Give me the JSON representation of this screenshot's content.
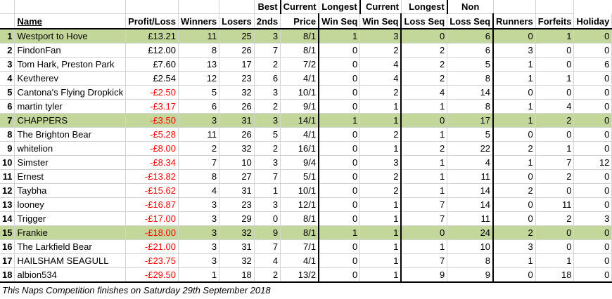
{
  "headers_top": {
    "best": "Best",
    "current_win": "Current",
    "longest_win": "Longest",
    "current_loss": "Current",
    "longest_loss": "Longest",
    "non": "Non"
  },
  "headers": {
    "name": "Name",
    "profit": "Profit/Loss",
    "winners": "Winners",
    "losers": "Losers",
    "seconds": "2nds",
    "price": "Price",
    "cur_win": "Win Seq",
    "long_win": "Win Seq",
    "cur_loss": "Loss Seq",
    "long_loss": "Loss Seq",
    "runners": "Runners",
    "forfeits": "Forfeits",
    "holiday": "Holiday"
  },
  "rows": [
    {
      "rank": "1",
      "name": "Westport to Hove",
      "profit": "£13.21",
      "winners": "11",
      "losers": "25",
      "seconds": "3",
      "price": "8/1",
      "cur_win": "1",
      "long_win": "3",
      "cur_loss": "0",
      "long_loss": "6",
      "non_runners": "0",
      "forfeits": "1",
      "holiday": "0",
      "highlight": true,
      "negative": false
    },
    {
      "rank": "2",
      "name": "FindonFan",
      "profit": "£12.00",
      "winners": "8",
      "losers": "26",
      "seconds": "7",
      "price": "8/1",
      "cur_win": "0",
      "long_win": "2",
      "cur_loss": "2",
      "long_loss": "6",
      "non_runners": "3",
      "forfeits": "0",
      "holiday": "0",
      "highlight": false,
      "negative": false
    },
    {
      "rank": "3",
      "name": "Tom Hark, Preston Park",
      "profit": "£7.60",
      "winners": "13",
      "losers": "17",
      "seconds": "2",
      "price": "7/2",
      "cur_win": "0",
      "long_win": "4",
      "cur_loss": "2",
      "long_loss": "5",
      "non_runners": "1",
      "forfeits": "0",
      "holiday": "6",
      "highlight": false,
      "negative": false
    },
    {
      "rank": "4",
      "name": "Kevtherev",
      "profit": "£2.54",
      "winners": "12",
      "losers": "23",
      "seconds": "6",
      "price": "4/1",
      "cur_win": "0",
      "long_win": "4",
      "cur_loss": "2",
      "long_loss": "8",
      "non_runners": "1",
      "forfeits": "1",
      "holiday": "0",
      "highlight": false,
      "negative": false
    },
    {
      "rank": "5",
      "name": "Cantona's Flying Dropkick",
      "profit": "-£2.50",
      "winners": "5",
      "losers": "32",
      "seconds": "3",
      "price": "10/1",
      "cur_win": "0",
      "long_win": "2",
      "cur_loss": "4",
      "long_loss": "14",
      "non_runners": "0",
      "forfeits": "0",
      "holiday": "0",
      "highlight": false,
      "negative": true
    },
    {
      "rank": "6",
      "name": "martin tyler",
      "profit": "-£3.17",
      "winners": "6",
      "losers": "26",
      "seconds": "2",
      "price": "9/1",
      "cur_win": "0",
      "long_win": "1",
      "cur_loss": "1",
      "long_loss": "8",
      "non_runners": "1",
      "forfeits": "4",
      "holiday": "0",
      "highlight": false,
      "negative": true
    },
    {
      "rank": "7",
      "name": "CHAPPERS",
      "profit": "-£3.50",
      "winners": "3",
      "losers": "31",
      "seconds": "3",
      "price": "14/1",
      "cur_win": "1",
      "long_win": "1",
      "cur_loss": "0",
      "long_loss": "17",
      "non_runners": "1",
      "forfeits": "2",
      "holiday": "0",
      "highlight": true,
      "negative": true
    },
    {
      "rank": "8",
      "name": "The Brighton Bear",
      "profit": "-£5.28",
      "winners": "11",
      "losers": "26",
      "seconds": "5",
      "price": "4/1",
      "cur_win": "0",
      "long_win": "2",
      "cur_loss": "1",
      "long_loss": "5",
      "non_runners": "0",
      "forfeits": "0",
      "holiday": "0",
      "highlight": false,
      "negative": true
    },
    {
      "rank": "9",
      "name": "whitelion",
      "profit": "-£8.00",
      "winners": "2",
      "losers": "32",
      "seconds": "2",
      "price": "16/1",
      "cur_win": "0",
      "long_win": "1",
      "cur_loss": "2",
      "long_loss": "22",
      "non_runners": "2",
      "forfeits": "1",
      "holiday": "0",
      "highlight": false,
      "negative": true
    },
    {
      "rank": "10",
      "name": "Simster",
      "profit": "-£8.34",
      "winners": "7",
      "losers": "10",
      "seconds": "3",
      "price": "9/4",
      "cur_win": "0",
      "long_win": "3",
      "cur_loss": "1",
      "long_loss": "4",
      "non_runners": "1",
      "forfeits": "7",
      "holiday": "12",
      "highlight": false,
      "negative": true
    },
    {
      "rank": "11",
      "name": "Ernest",
      "profit": "-£13.82",
      "winners": "8",
      "losers": "27",
      "seconds": "7",
      "price": "5/1",
      "cur_win": "0",
      "long_win": "2",
      "cur_loss": "1",
      "long_loss": "11",
      "non_runners": "0",
      "forfeits": "2",
      "holiday": "0",
      "highlight": false,
      "negative": true
    },
    {
      "rank": "12",
      "name": "Taybha",
      "profit": "-£15.62",
      "winners": "4",
      "losers": "31",
      "seconds": "1",
      "price": "10/1",
      "cur_win": "0",
      "long_win": "2",
      "cur_loss": "1",
      "long_loss": "14",
      "non_runners": "2",
      "forfeits": "0",
      "holiday": "0",
      "highlight": false,
      "negative": true
    },
    {
      "rank": "13",
      "name": "looney",
      "profit": "-£16.87",
      "winners": "3",
      "losers": "23",
      "seconds": "3",
      "price": "12/1",
      "cur_win": "0",
      "long_win": "1",
      "cur_loss": "7",
      "long_loss": "14",
      "non_runners": "0",
      "forfeits": "11",
      "holiday": "0",
      "highlight": false,
      "negative": true
    },
    {
      "rank": "14",
      "name": "Trigger",
      "profit": "-£17.00",
      "winners": "3",
      "losers": "29",
      "seconds": "0",
      "price": "8/1",
      "cur_win": "0",
      "long_win": "1",
      "cur_loss": "7",
      "long_loss": "11",
      "non_runners": "0",
      "forfeits": "2",
      "holiday": "3",
      "highlight": false,
      "negative": true
    },
    {
      "rank": "15",
      "name": "Frankie",
      "profit": "-£18.00",
      "winners": "3",
      "losers": "32",
      "seconds": "9",
      "price": "8/1",
      "cur_win": "1",
      "long_win": "1",
      "cur_loss": "0",
      "long_loss": "24",
      "non_runners": "2",
      "forfeits": "0",
      "holiday": "0",
      "highlight": true,
      "negative": true
    },
    {
      "rank": "16",
      "name": "The Larkfield Bear",
      "profit": "-£21.00",
      "winners": "3",
      "losers": "31",
      "seconds": "7",
      "price": "7/1",
      "cur_win": "0",
      "long_win": "1",
      "cur_loss": "1",
      "long_loss": "10",
      "non_runners": "3",
      "forfeits": "0",
      "holiday": "0",
      "highlight": false,
      "negative": true
    },
    {
      "rank": "17",
      "name": "HAILSHAM SEAGULL",
      "profit": "-£23.75",
      "winners": "3",
      "losers": "32",
      "seconds": "4",
      "price": "4/1",
      "cur_win": "0",
      "long_win": "1",
      "cur_loss": "7",
      "long_loss": "8",
      "non_runners": "1",
      "forfeits": "1",
      "holiday": "0",
      "highlight": false,
      "negative": true
    },
    {
      "rank": "18",
      "name": "albion534",
      "profit": "-£29.50",
      "winners": "1",
      "losers": "18",
      "seconds": "2",
      "price": "13/2",
      "cur_win": "0",
      "long_win": "1",
      "cur_loss": "9",
      "long_loss": "9",
      "non_runners": "0",
      "forfeits": "18",
      "holiday": "0",
      "highlight": false,
      "negative": true
    }
  ],
  "footer": "This Naps Competition finishes on Saturday 29th September 2018",
  "colors": {
    "highlight": "#c4d79b",
    "negative": "#ff0000"
  }
}
